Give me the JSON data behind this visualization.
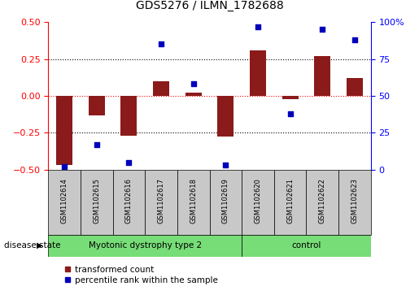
{
  "title": "GDS5276 / ILMN_1782688",
  "samples": [
    "GSM1102614",
    "GSM1102615",
    "GSM1102616",
    "GSM1102617",
    "GSM1102618",
    "GSM1102619",
    "GSM1102620",
    "GSM1102621",
    "GSM1102622",
    "GSM1102623"
  ],
  "transformed_counts": [
    -0.47,
    -0.13,
    -0.27,
    0.1,
    0.02,
    -0.275,
    0.31,
    -0.02,
    0.27,
    0.12
  ],
  "percentile_ranks": [
    2,
    17,
    5,
    85,
    58,
    3,
    97,
    38,
    95,
    88
  ],
  "group1_count": 6,
  "group2_count": 4,
  "group1_label": "Myotonic dystrophy type 2",
  "group2_label": "control",
  "bar_color": "#8B1A1A",
  "dot_color": "#0000BB",
  "green_color": "#77DD77",
  "sample_box_color": "#C8C8C8",
  "ylim_left": [
    -0.5,
    0.5
  ],
  "ylim_right": [
    0,
    100
  ],
  "yticks_left": [
    -0.5,
    -0.25,
    0.0,
    0.25,
    0.5
  ],
  "yticks_right": [
    0,
    25,
    50,
    75,
    100
  ],
  "yticklabels_right": [
    "0",
    "25",
    "50",
    "75",
    "100%"
  ],
  "dotted_lines": [
    -0.25,
    0.0,
    0.25
  ],
  "legend_labels": [
    "transformed count",
    "percentile rank within the sample"
  ],
  "disease_state_label": "disease state",
  "background_color": "#ffffff"
}
